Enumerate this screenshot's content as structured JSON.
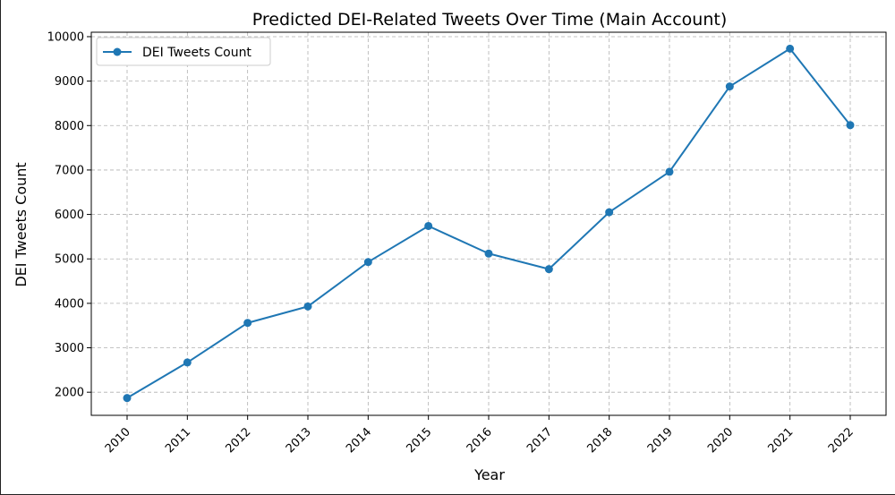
{
  "chart_data": {
    "type": "line",
    "title": "Predicted DEI-Related Tweets Over Time (Main Account)",
    "xlabel": "Year",
    "ylabel": "DEI Tweets Count",
    "x": [
      "2010",
      "2011",
      "2012",
      "2013",
      "2014",
      "2015",
      "2016",
      "2017",
      "2018",
      "2019",
      "2020",
      "2021",
      "2022"
    ],
    "series": [
      {
        "name": "DEI Tweets Count",
        "values": [
          1870,
          2670,
          3560,
          3930,
          4930,
          5740,
          5120,
          4770,
          6050,
          6960,
          8880,
          9730,
          8010
        ],
        "color": "#1f77b4",
        "marker": "circle"
      }
    ],
    "ylim": [
      1480,
      10100
    ],
    "yticks": [
      2000,
      3000,
      4000,
      5000,
      6000,
      7000,
      8000,
      9000,
      10000
    ],
    "grid": true,
    "legend_position": "upper-left",
    "xtick_rotation": 45
  }
}
